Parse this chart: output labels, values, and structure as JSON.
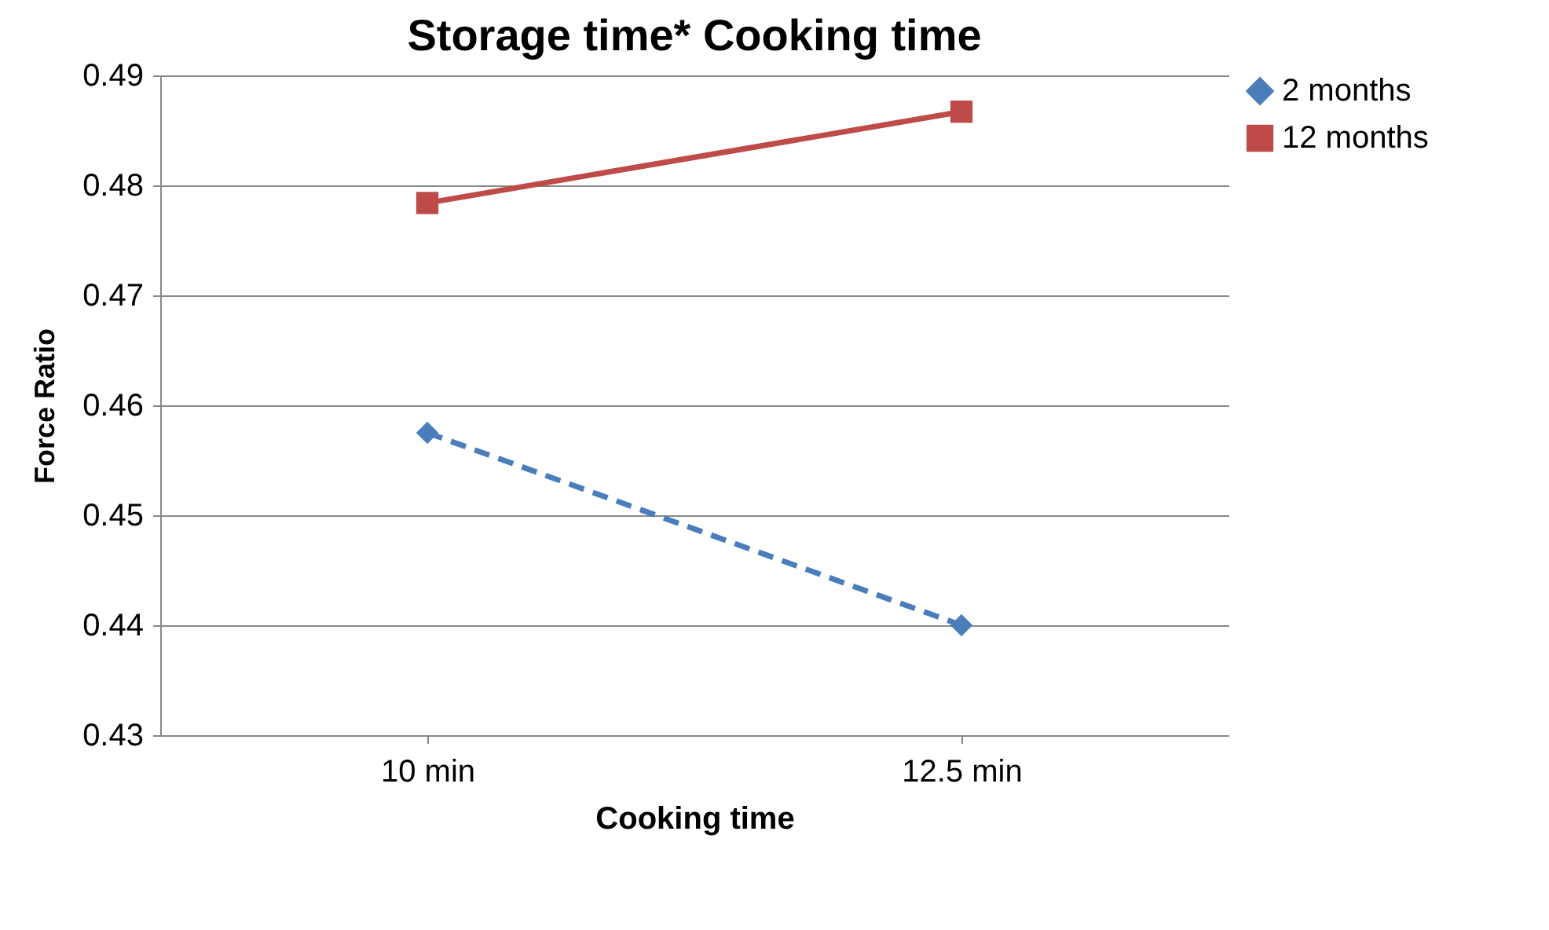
{
  "chart_data": {
    "type": "line",
    "title": "Storage time* Cooking time",
    "xlabel": "Cooking time",
    "ylabel": "Force Ratio",
    "categories": [
      "10 min",
      "12.5 min"
    ],
    "series": [
      {
        "name": "2 months",
        "color": "#4a7ebb",
        "values": [
          0.4575,
          0.44
        ],
        "marker": "diamond",
        "line_style": "dashed"
      },
      {
        "name": "12 months",
        "color": "#be4b48",
        "values": [
          0.4784,
          0.4867
        ],
        "marker": "square",
        "line_style": "solid"
      }
    ],
    "ylim": [
      0.43,
      0.49
    ],
    "yticks": [
      0.43,
      0.44,
      0.45,
      0.46,
      0.47,
      0.48,
      0.49
    ],
    "grid": "y",
    "legend": "right"
  }
}
